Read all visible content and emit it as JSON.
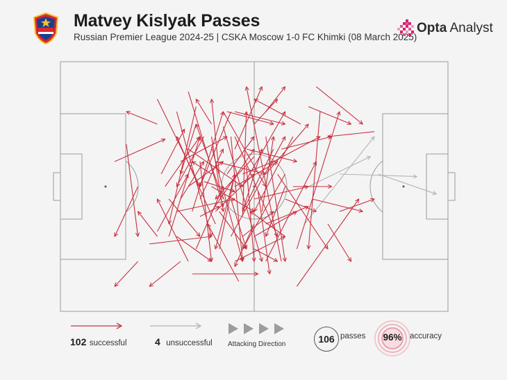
{
  "header": {
    "title": "Matvey Kislyak Passes",
    "subtitle": "Russian Premier League 2024-25 | CSKA Moscow 1-0 FC Khimki (08 March 2025)",
    "club_logo_icon": "cska-moscow-crest-icon",
    "brand": {
      "bold": "Opta",
      "regular": " Analyst",
      "icon": "opta-pixel-logo-icon"
    }
  },
  "colors": {
    "successful": "#c8303f",
    "unsuccessful": "#b4b4b4",
    "pitch_lines": "#9a9a9a",
    "background": "#f4f4f4"
  },
  "legend": {
    "successful": {
      "count": "102",
      "label": "successful"
    },
    "unsuccessful": {
      "count": "4",
      "label": "unsuccessful"
    },
    "direction": {
      "label": "Attacking Direction"
    },
    "passes": {
      "count": "106",
      "label": "passes"
    },
    "accuracy": {
      "value": "96%",
      "label": "accuracy"
    }
  },
  "chart_data": {
    "type": "pass-map",
    "pitch_length": 100,
    "pitch_width": 100,
    "attacking_direction": "left-to-right",
    "passes_successful": [
      [
        14,
        40,
        27,
        31
      ],
      [
        30,
        20,
        39,
        70
      ],
      [
        27,
        50,
        36,
        30
      ],
      [
        34,
        60,
        42,
        20
      ],
      [
        44,
        70,
        58,
        30
      ],
      [
        53,
        80,
        66,
        40
      ],
      [
        61,
        90,
        77,
        55
      ],
      [
        66,
        10,
        78,
        25
      ],
      [
        53,
        30,
        58,
        80
      ],
      [
        36,
        40,
        39,
        80
      ],
      [
        39,
        30,
        42,
        60
      ],
      [
        42,
        20,
        53,
        50
      ],
      [
        50,
        70,
        61,
        60
      ],
      [
        56,
        45,
        69,
        75
      ],
      [
        67,
        20,
        64,
        75
      ],
      [
        72,
        60,
        81,
        55
      ],
      [
        81,
        28,
        69,
        30
      ],
      [
        64,
        18,
        75,
        25
      ],
      [
        57,
        35,
        70,
        30
      ],
      [
        47,
        50,
        58,
        20
      ],
      [
        44,
        30,
        47,
        80
      ],
      [
        30,
        70,
        39,
        80
      ],
      [
        25,
        68,
        33,
        45
      ],
      [
        17,
        33,
        20,
        70
      ],
      [
        33,
        12,
        42,
        58
      ],
      [
        39,
        34,
        47,
        80
      ],
      [
        28,
        70,
        36,
        30
      ],
      [
        58,
        70,
        49,
        60
      ],
      [
        61,
        75,
        72,
        20
      ],
      [
        69,
        65,
        75,
        80
      ],
      [
        42,
        26,
        52,
        80
      ],
      [
        45,
        30,
        56,
        70
      ],
      [
        47,
        45,
        55,
        40
      ],
      [
        58,
        55,
        66,
        60
      ],
      [
        45,
        50,
        56,
        40
      ],
      [
        39,
        50,
        50,
        60
      ],
      [
        33,
        35,
        47,
        50
      ],
      [
        23,
        73,
        39,
        70
      ],
      [
        30,
        60,
        45,
        55
      ],
      [
        33,
        50,
        42,
        40
      ],
      [
        55,
        40,
        67,
        30
      ],
      [
        60,
        50,
        70,
        50
      ],
      [
        65,
        55,
        78,
        60
      ],
      [
        25,
        15,
        36,
        50
      ],
      [
        20,
        50,
        14,
        70
      ],
      [
        45,
        80,
        58,
        70
      ],
      [
        47,
        70,
        55,
        60
      ],
      [
        50,
        55,
        64,
        50
      ],
      [
        53,
        45,
        64,
        25
      ],
      [
        62,
        25,
        50,
        15
      ],
      [
        58,
        50,
        53,
        70
      ],
      [
        45,
        20,
        58,
        25
      ],
      [
        50,
        65,
        45,
        82
      ],
      [
        41,
        75,
        45,
        45
      ],
      [
        47,
        60,
        52,
        35
      ],
      [
        35,
        75,
        42,
        50
      ],
      [
        28,
        55,
        36,
        70
      ],
      [
        36,
        55,
        42,
        35
      ],
      [
        39,
        60,
        50,
        35
      ],
      [
        55,
        35,
        47,
        60
      ],
      [
        45,
        35,
        52,
        10
      ],
      [
        43,
        45,
        50,
        30
      ],
      [
        31,
        55,
        37,
        40
      ],
      [
        53,
        20,
        58,
        10
      ],
      [
        50,
        25,
        56,
        15
      ],
      [
        40,
        60,
        50,
        45
      ],
      [
        48,
        35,
        61,
        40
      ],
      [
        40,
        40,
        53,
        45
      ],
      [
        37,
        48,
        45,
        52
      ],
      [
        44,
        55,
        48,
        75
      ],
      [
        34,
        85,
        51,
        85
      ],
      [
        31,
        40,
        43,
        30
      ],
      [
        57,
        80,
        48,
        10
      ],
      [
        31,
        80,
        23,
        90
      ],
      [
        25,
        70,
        20,
        60
      ],
      [
        41,
        45,
        39,
        15
      ],
      [
        35,
        25,
        31,
        45
      ],
      [
        40,
        65,
        30,
        30
      ],
      [
        33,
        80,
        25,
        55
      ],
      [
        48,
        42,
        50,
        80
      ],
      [
        25,
        25,
        17,
        20
      ],
      [
        43,
        20,
        55,
        25
      ],
      [
        47,
        62,
        48,
        20
      ],
      [
        42,
        55,
        35,
        25
      ],
      [
        37,
        30,
        30,
        50
      ],
      [
        39,
        45,
        34,
        40
      ],
      [
        44,
        20,
        36,
        50
      ],
      [
        50,
        38,
        40,
        55
      ],
      [
        52,
        60,
        55,
        30
      ],
      [
        50,
        75,
        56,
        80
      ],
      [
        35,
        18,
        28,
        65
      ],
      [
        41,
        60,
        48,
        75
      ],
      [
        53,
        65,
        64,
        58
      ],
      [
        45,
        45,
        40,
        75
      ],
      [
        39,
        25,
        35,
        15
      ],
      [
        58,
        45,
        47,
        75
      ],
      [
        60,
        30,
        50,
        60
      ],
      [
        20,
        80,
        14,
        90
      ],
      [
        26,
        45,
        32,
        27
      ],
      [
        51,
        52,
        54,
        85
      ],
      [
        46,
        88,
        38,
        65
      ],
      [
        36,
        62,
        41,
        58
      ]
    ],
    "passes_unsuccessful": [
      [
        63,
        65,
        81,
        30
      ],
      [
        64,
        50,
        80,
        38
      ],
      [
        72,
        45,
        92,
        46
      ],
      [
        82,
        45,
        97,
        53
      ]
    ]
  }
}
